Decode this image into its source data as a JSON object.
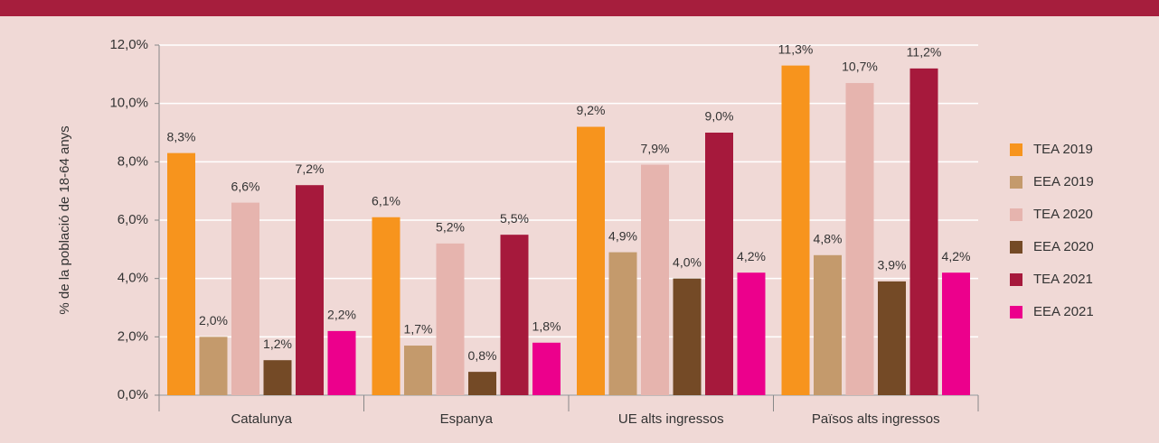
{
  "chart_data": {
    "type": "bar",
    "y_label": "% de la població de 18-64 anys",
    "categories": [
      "Catalunya",
      "Espanya",
      "UE alts ingressos",
      "Països alts ingressos"
    ],
    "series": [
      {
        "name": "TEA 2019",
        "color": "#f7941d",
        "values": [
          8.3,
          6.1,
          9.2,
          11.3
        ],
        "value_labels": [
          "8,3%",
          "6,1%",
          "9,2%",
          "11,3%"
        ]
      },
      {
        "name": "EEA 2019",
        "color": "#c49a6c",
        "values": [
          2.0,
          1.7,
          4.9,
          4.8
        ],
        "value_labels": [
          "2,0%",
          "1,7%",
          "4,9%",
          "4,8%"
        ]
      },
      {
        "name": "TEA 2020",
        "color": "#e6b4ae",
        "values": [
          6.6,
          5.2,
          7.9,
          10.7
        ],
        "value_labels": [
          "6,6%",
          "5,2%",
          "7,9%",
          "10,7%"
        ]
      },
      {
        "name": "EEA 2020",
        "color": "#744a26",
        "values": [
          1.2,
          0.8,
          4.0,
          3.9
        ],
        "value_labels": [
          "1,2%",
          "0,8%",
          "4,0%",
          "3,9%"
        ]
      },
      {
        "name": "TEA 2021",
        "color": "#a6193c",
        "values": [
          7.2,
          5.5,
          9.0,
          11.2
        ],
        "value_labels": [
          "7,2%",
          "5,5%",
          "9,0%",
          "11,2%"
        ]
      },
      {
        "name": "EEA 2021",
        "color": "#ec008c",
        "values": [
          2.2,
          1.8,
          4.2,
          4.2
        ],
        "value_labels": [
          "2,2%",
          "1,8%",
          "4,2%",
          "4,2%"
        ]
      }
    ],
    "ylim": [
      0,
      12
    ],
    "yticks": [
      {
        "value": 0,
        "label": "0,0%"
      },
      {
        "value": 2,
        "label": "2,0%"
      },
      {
        "value": 4,
        "label": "4,0%"
      },
      {
        "value": 6,
        "label": "6,0%"
      },
      {
        "value": 8,
        "label": "8,0%"
      },
      {
        "value": 10,
        "label": "10,0%"
      },
      {
        "value": 12,
        "label": "12,0%"
      }
    ],
    "grid": true,
    "legend": "right"
  }
}
